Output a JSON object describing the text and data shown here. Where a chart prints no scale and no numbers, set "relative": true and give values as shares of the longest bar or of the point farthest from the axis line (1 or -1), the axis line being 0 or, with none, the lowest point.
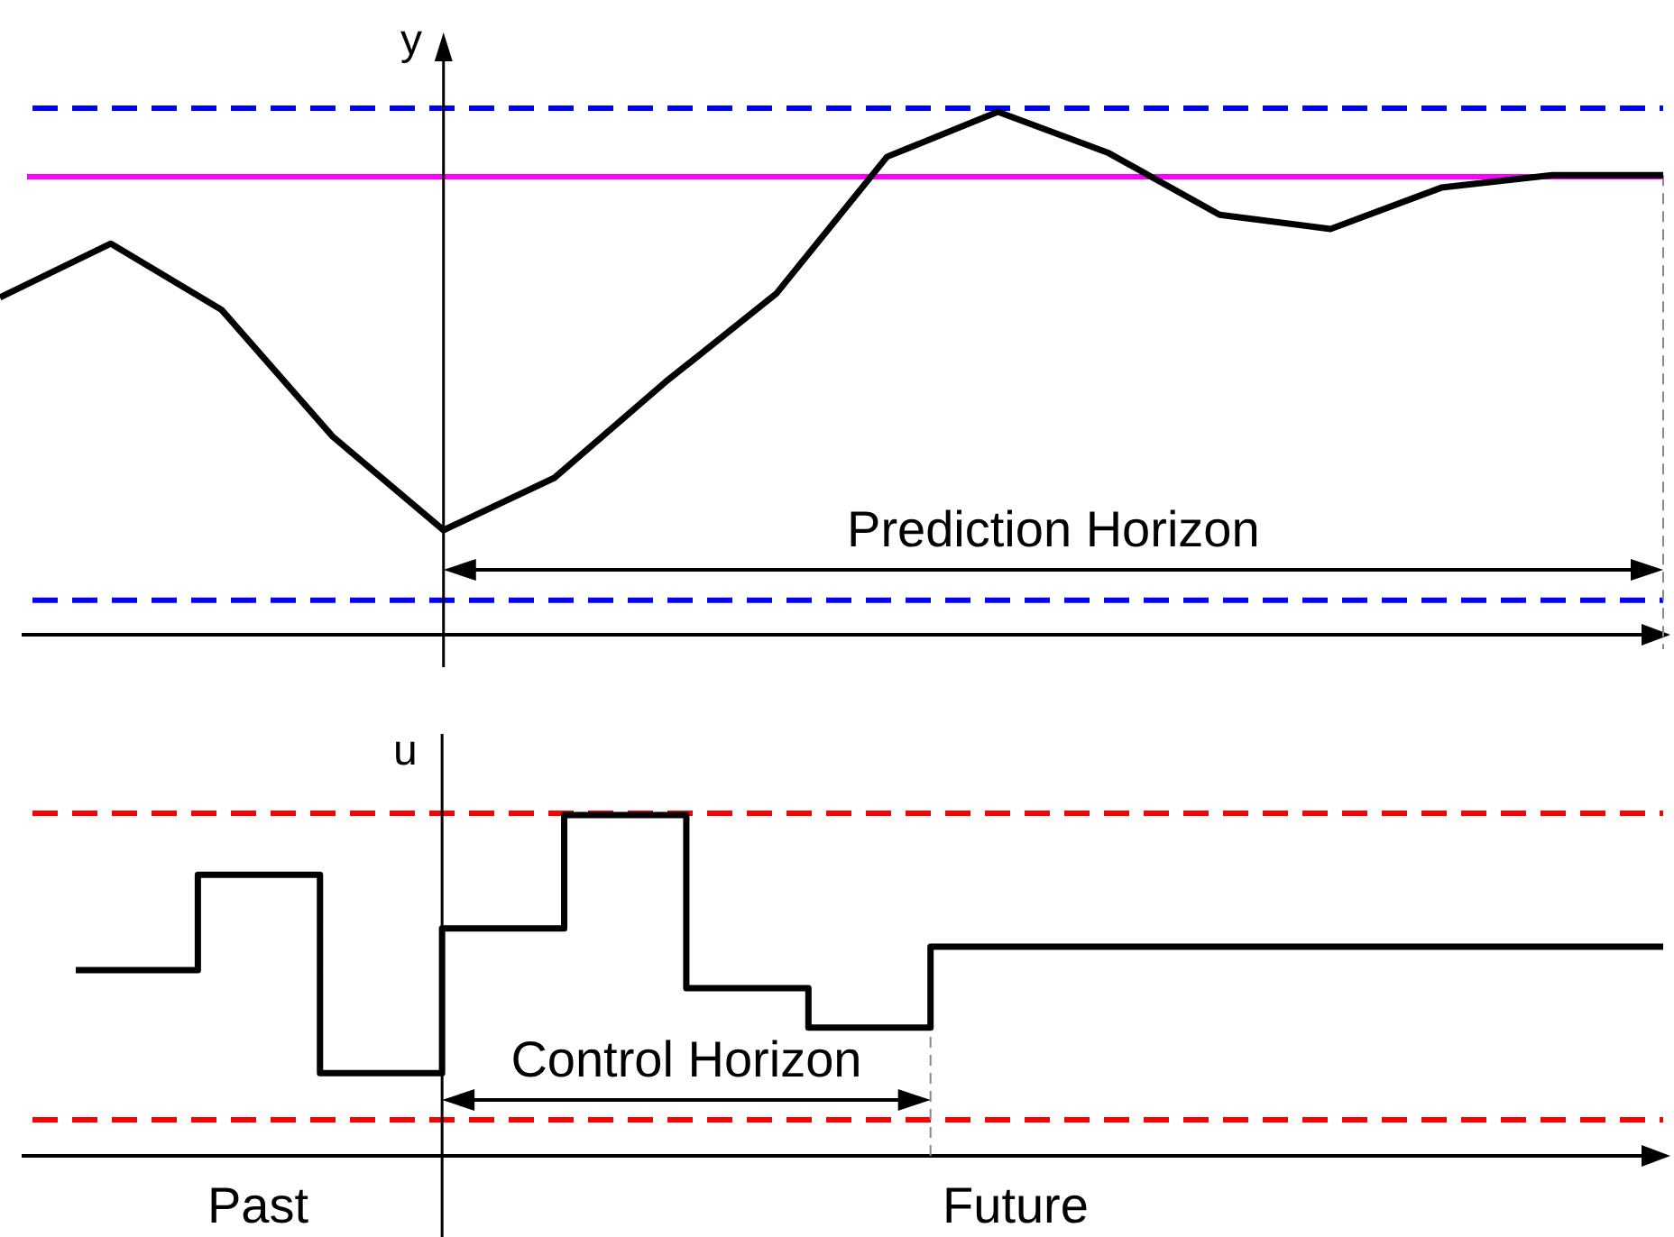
{
  "chart_data": [
    {
      "type": "line",
      "relative": true,
      "ylabel": "y",
      "categories": [
        null,
        null,
        null,
        null,
        null,
        null,
        null,
        null,
        null,
        null,
        null,
        null,
        null,
        null,
        null,
        null
      ],
      "series": [
        {
          "color": "#000000",
          "values": [
            0.645,
            0.748,
            0.621,
            0.379,
            0.2,
            0.3,
            0.483,
            0.652,
            0.914,
            1,
            0.921,
            0.803,
            0.776,
            0.855,
            0.879,
            0.879
          ]
        }
      ],
      "ref_lines": [
        {
          "axis": "y",
          "value": 1.007,
          "color": "#0000ff",
          "line_style": "dashed"
        },
        {
          "axis": "y",
          "value": 0.876,
          "color": "#ff00ff",
          "line_style": "solid"
        },
        {
          "axis": "y",
          "value": 0.066,
          "color": "#0000ff",
          "line_style": "dashed"
        }
      ],
      "annotations": [
        "Prediction Horizon"
      ]
    },
    {
      "type": "step",
      "relative": true,
      "ylabel": "u",
      "categories": [
        null,
        null,
        null,
        null,
        null,
        null,
        null,
        null,
        null,
        null,
        null,
        null,
        null,
        null
      ],
      "series": [
        {
          "color": "#000000",
          "values": [
            0.545,
            0.825,
            0.243,
            0.667,
            1,
            0.492,
            0.376,
            0.614,
            0.614,
            0.614,
            0.614,
            0.614,
            0.614,
            0.614
          ]
        }
      ],
      "ref_lines": [
        {
          "axis": "y",
          "value": 1.005,
          "color": "#ff0000",
          "line_style": "dashed"
        },
        {
          "axis": "y",
          "value": 0.106,
          "color": "#ff0000",
          "line_style": "dashed"
        }
      ],
      "annotations": [
        "Control Horizon",
        "Past",
        "Future"
      ]
    }
  ]
}
